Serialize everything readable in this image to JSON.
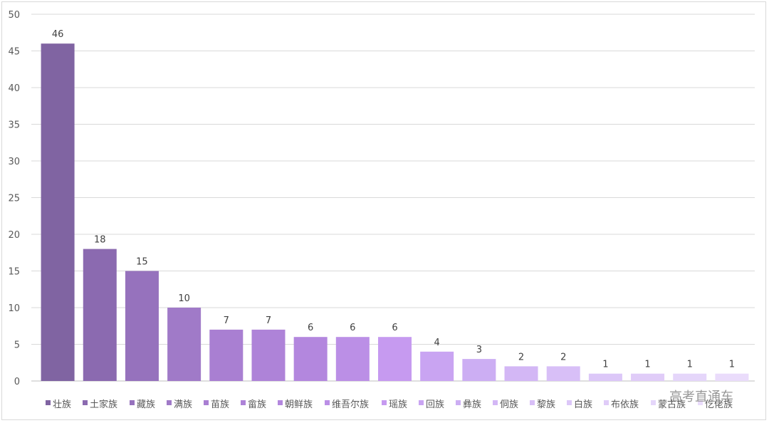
{
  "chart_data": {
    "type": "bar",
    "categories": [
      "壮族",
      "土家族",
      "藏族",
      "满族",
      "苗族",
      "畲族",
      "朝鲜族",
      "维吾尔族",
      "瑶族",
      "回族",
      "彝族",
      "侗族",
      "黎族",
      "白族",
      "布依族",
      "蒙古族",
      "仡佬族"
    ],
    "values": [
      46,
      18,
      15,
      10,
      7,
      7,
      6,
      6,
      6,
      4,
      3,
      2,
      2,
      1,
      1,
      1,
      1
    ],
    "data_labels": [
      "46",
      "18",
      "15",
      "10",
      "7",
      "7",
      "6",
      "6",
      "6",
      "4",
      "3",
      "2",
      "2",
      "1",
      "1",
      "1",
      "1"
    ],
    "colors": [
      "#8064a2",
      "#8b6ab0",
      "#9672bd",
      "#a07ac8",
      "#a97fd2",
      "#ae83d8",
      "#b387de",
      "#bb8fe6",
      "#c69af0",
      "#c9a4f2",
      "#ccaef3",
      "#d3b7f5",
      "#d8bff7",
      "#dcc7f8",
      "#e0ccf8",
      "#e5d6fa",
      "#eadcfb"
    ],
    "yticks": [
      "0",
      "5",
      "10",
      "15",
      "20",
      "25",
      "30",
      "35",
      "40",
      "45",
      "50"
    ],
    "ylim": [
      0,
      50
    ],
    "grid": true,
    "legend_position": "bottom",
    "title": "",
    "xlabel": "",
    "ylabel": ""
  },
  "watermark": "高考直通车"
}
